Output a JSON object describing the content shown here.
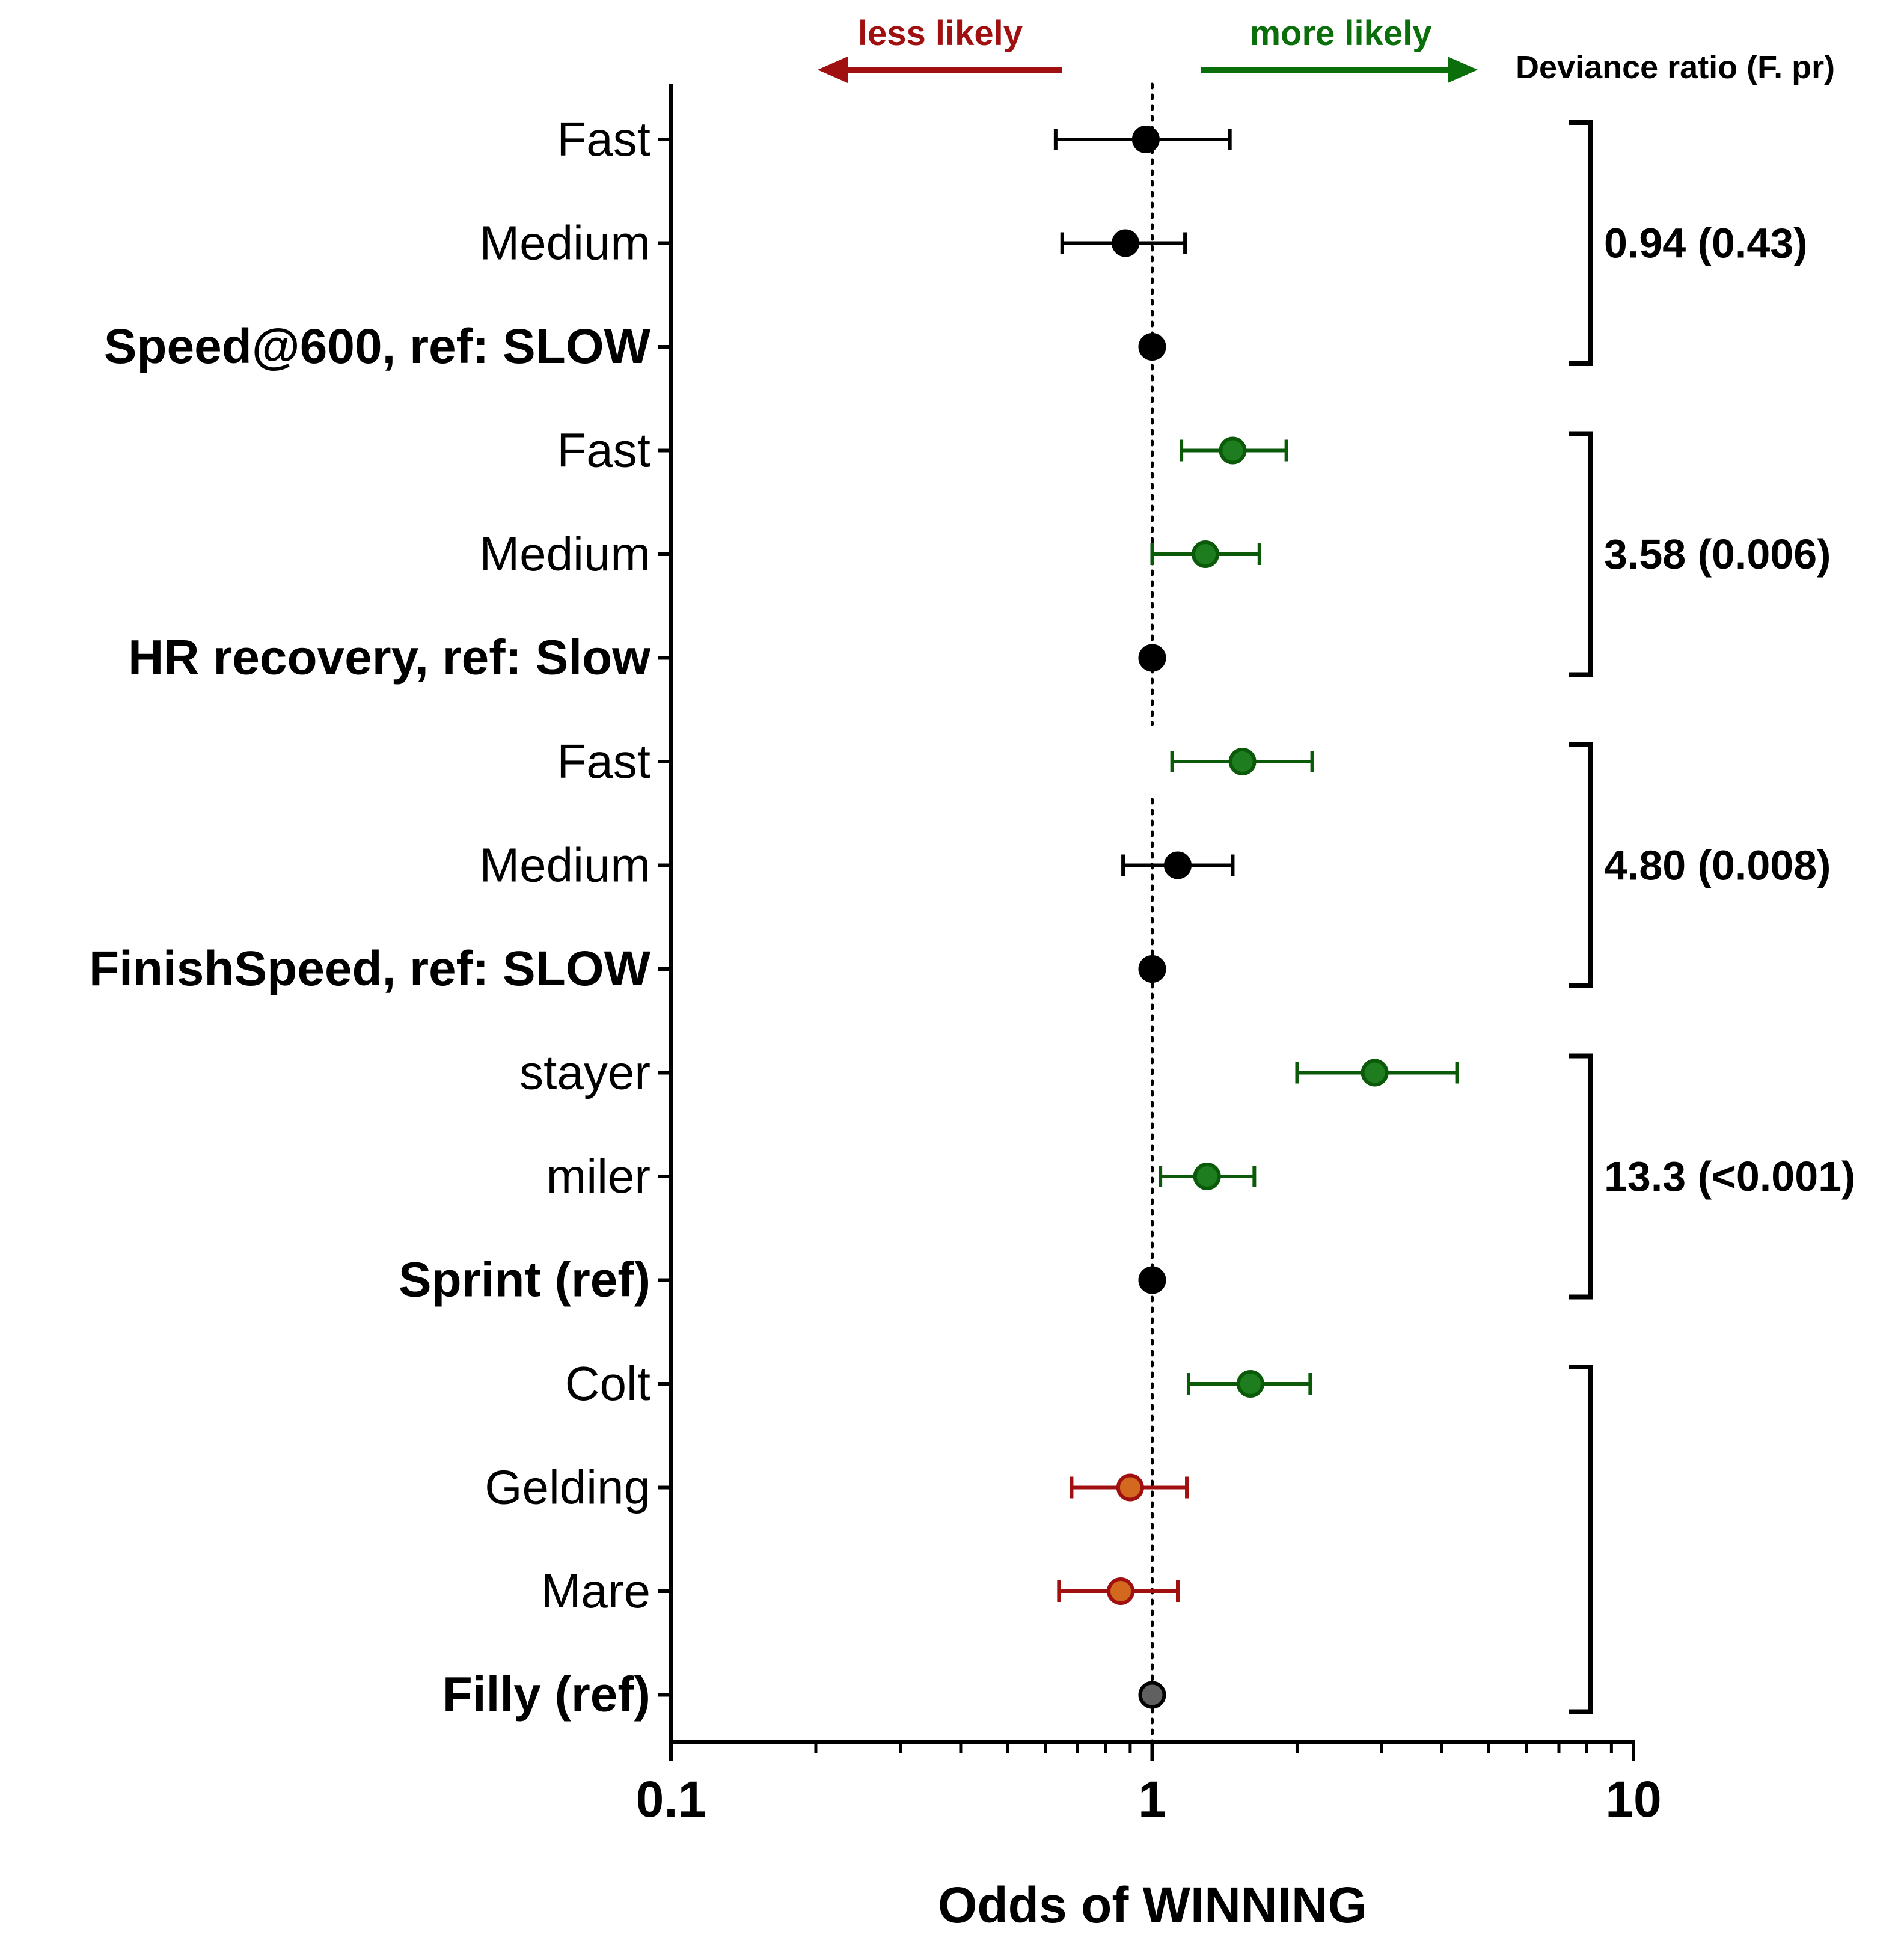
{
  "chart_data": {
    "type": "forest",
    "xscale": "log",
    "xlim": [
      0.1,
      10
    ],
    "xlabel": "Odds of WINNING",
    "xticks": [
      {
        "value": 0.1,
        "label": "0.1"
      },
      {
        "value": 1,
        "label": "1"
      },
      {
        "value": 10,
        "label": "10"
      }
    ],
    "reference_line": 1,
    "annotations": {
      "less": "less likely",
      "more": "more likely",
      "deviance_header": "Deviance ratio (F. pr)"
    },
    "colors": {
      "neutral": "#000000",
      "positive": "#1e7d1e",
      "positive_stroke": "#0a5a0a",
      "negative_fill": "#d2691e",
      "negative_stroke": "#a01010",
      "reference_gray": "#606060",
      "less_arrow": "#a01010",
      "more_arrow": "#0a6e0a"
    },
    "rows": [
      {
        "label": "Fast",
        "bold": false,
        "or": 0.97,
        "lo": 0.63,
        "hi": 1.45,
        "style": "neutral"
      },
      {
        "label": "Medium",
        "bold": false,
        "or": 0.88,
        "lo": 0.65,
        "hi": 1.17,
        "style": "neutral"
      },
      {
        "label": "Speed@600, ref: SLOW",
        "bold": true,
        "or": 1.0,
        "lo": null,
        "hi": null,
        "style": "neutral"
      },
      {
        "label": "Fast",
        "bold": false,
        "or": 1.47,
        "lo": 1.15,
        "hi": 1.9,
        "style": "positive"
      },
      {
        "label": "Medium",
        "bold": false,
        "or": 1.29,
        "lo": 1.0,
        "hi": 1.67,
        "style": "positive"
      },
      {
        "label": "HR recovery, ref: Slow",
        "bold": true,
        "or": 1.0,
        "lo": null,
        "hi": null,
        "style": "neutral"
      },
      {
        "label": "Fast",
        "bold": false,
        "or": 1.54,
        "lo": 1.1,
        "hi": 2.15,
        "style": "positive"
      },
      {
        "label": "Medium",
        "bold": false,
        "or": 1.13,
        "lo": 0.87,
        "hi": 1.47,
        "style": "neutral"
      },
      {
        "label": "FinishSpeed, ref: SLOW",
        "bold": true,
        "or": 1.0,
        "lo": null,
        "hi": null,
        "style": "neutral"
      },
      {
        "label": "stayer",
        "bold": false,
        "or": 2.9,
        "lo": 2.0,
        "hi": 4.3,
        "style": "positive"
      },
      {
        "label": "miler",
        "bold": false,
        "or": 1.3,
        "lo": 1.04,
        "hi": 1.63,
        "style": "positive"
      },
      {
        "label": "Sprint (ref)",
        "bold": true,
        "or": 1.0,
        "lo": null,
        "hi": null,
        "style": "neutral"
      },
      {
        "label": "Colt",
        "bold": false,
        "or": 1.6,
        "lo": 1.19,
        "hi": 2.13,
        "style": "positive"
      },
      {
        "label": "Gelding",
        "bold": false,
        "or": 0.9,
        "lo": 0.68,
        "hi": 1.18,
        "style": "negative"
      },
      {
        "label": "Mare",
        "bold": false,
        "or": 0.86,
        "lo": 0.64,
        "hi": 1.13,
        "style": "negative"
      },
      {
        "label": "Filly (ref)",
        "bold": true,
        "or": 1.0,
        "lo": null,
        "hi": null,
        "style": "reference_gray"
      }
    ],
    "groups": [
      {
        "first_row": 0,
        "last_row": 2,
        "deviance": "0.94 (0.43)"
      },
      {
        "first_row": 3,
        "last_row": 5,
        "deviance": "3.58 (0.006)"
      },
      {
        "first_row": 6,
        "last_row": 8,
        "deviance": "4.80 (0.008)"
      },
      {
        "first_row": 9,
        "last_row": 11,
        "deviance": "13.3 (<0.001)"
      },
      {
        "first_row": 12,
        "last_row": 15,
        "deviance": ""
      }
    ]
  }
}
